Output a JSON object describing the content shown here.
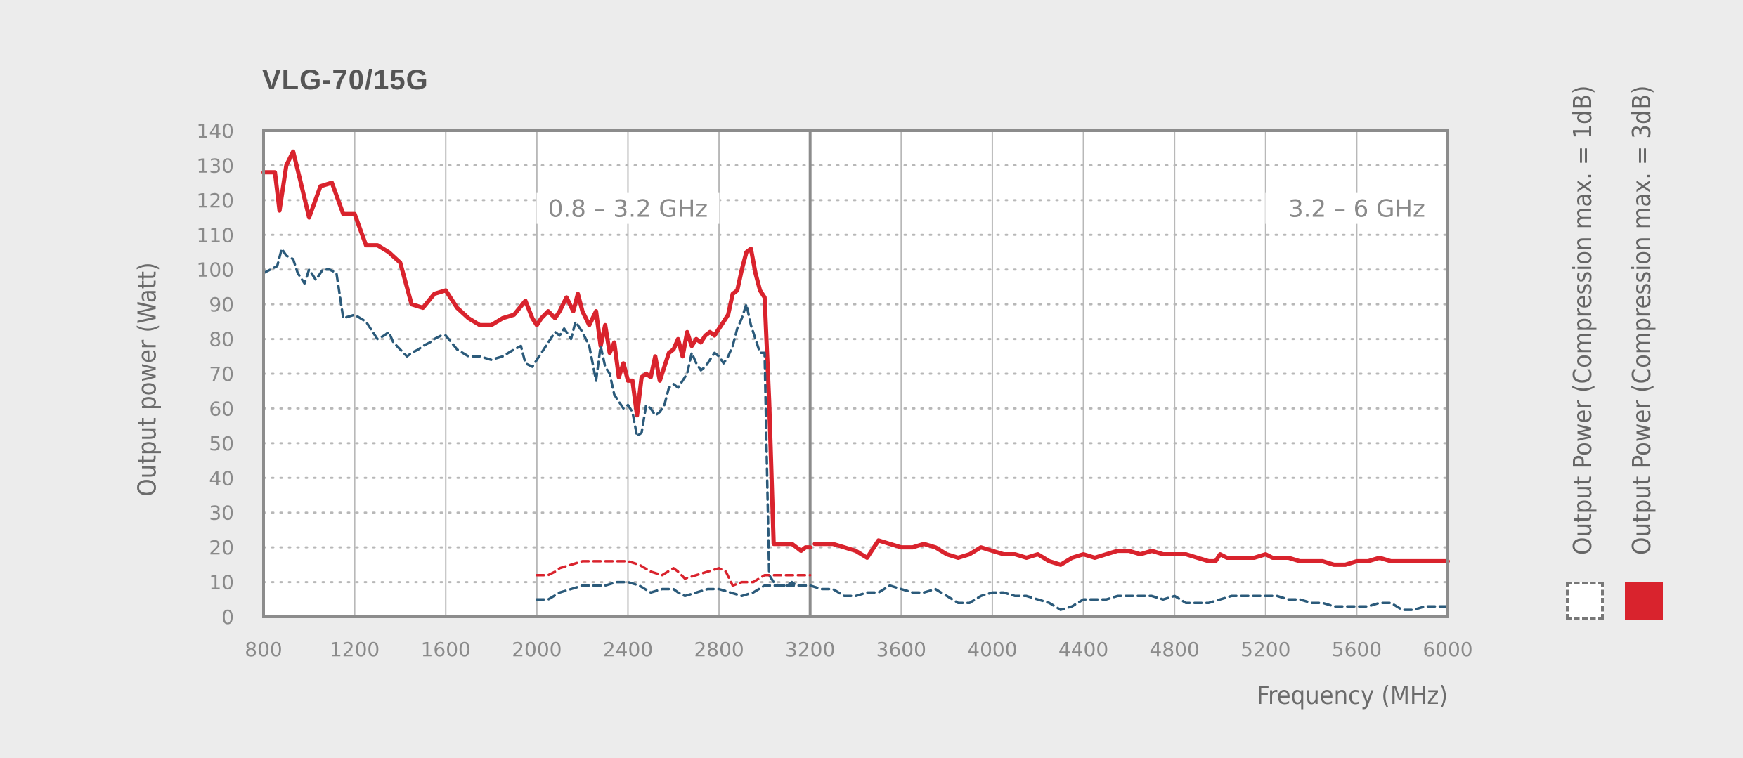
{
  "chart_data": {
    "type": "line",
    "title": "VLG-70/15G",
    "xlabel": "Frequency (MHz)",
    "ylabel": "Output power (Watt)",
    "xlim": [
      800,
      6000
    ],
    "ylim": [
      0,
      140
    ],
    "x_ticks": [
      "800",
      "1200",
      "1600",
      "2000",
      "2400",
      "2800",
      "3200",
      "3600",
      "4000",
      "4400",
      "4800",
      "5200",
      "5600",
      "6000"
    ],
    "y_ticks": [
      "0",
      "10",
      "20",
      "30",
      "40",
      "50",
      "60",
      "70",
      "80",
      "90",
      "100",
      "110",
      "120",
      "130",
      "140"
    ],
    "regions": [
      {
        "label": "0.8 – 3.2 GHz",
        "x": 2400
      },
      {
        "label": "3.2 – 6 GHz",
        "x": 5600
      }
    ],
    "grid": true,
    "legend": [
      {
        "label": "Output Power (Compression max. = 1dB)",
        "style": "dashed-box"
      },
      {
        "label": "Output Power (Compression max. = 3dB)",
        "style": "filled",
        "color": "#d9232d"
      }
    ],
    "colors": {
      "red": "#d9232d",
      "blue": "#2b5a7a",
      "grid": "#b8b8b8",
      "frame": "#8c8c8c",
      "tick_text": "#8a8a8a"
    },
    "series": [
      {
        "style": "solid",
        "color": "#d9232d",
        "x": [
          800,
          850,
          870,
          900,
          930,
          960,
          1000,
          1050,
          1100,
          1150,
          1200,
          1250,
          1300,
          1350,
          1400,
          1450,
          1500,
          1550,
          1600,
          1650,
          1700,
          1750,
          1800,
          1850,
          1900,
          1950,
          1980,
          2000,
          2020,
          2050,
          2080,
          2100,
          2130,
          2160,
          2180,
          2200,
          2230,
          2260,
          2280,
          2300,
          2320,
          2340,
          2360,
          2380,
          2400,
          2420,
          2440,
          2460,
          2480,
          2500,
          2520,
          2540,
          2560,
          2580,
          2600,
          2620,
          2640,
          2660,
          2680,
          2700,
          2720,
          2740,
          2760,
          2780,
          2800,
          2820,
          2840,
          2860,
          2880,
          2900,
          2920,
          2940,
          2960,
          2980,
          3000,
          3020,
          3040,
          3060,
          3080,
          3100,
          3120,
          3140,
          3160,
          3180,
          3200
        ],
        "y": [
          128,
          128,
          117,
          130,
          134,
          126,
          115,
          124,
          125,
          116,
          116,
          107,
          107,
          105,
          102,
          90,
          89,
          93,
          94,
          89,
          86,
          84,
          84,
          86,
          87,
          91,
          86,
          84,
          86,
          88,
          86,
          88,
          92,
          88,
          93,
          88,
          84,
          88,
          78,
          84,
          76,
          79,
          69,
          73,
          68,
          68,
          58,
          69,
          70,
          69,
          75,
          68,
          72,
          76,
          77,
          80,
          75,
          82,
          78,
          80,
          79,
          81,
          82,
          81,
          83,
          85,
          87,
          93,
          94,
          100,
          105,
          106,
          99,
          94,
          92,
          62,
          21,
          21,
          21,
          21,
          21,
          20,
          19,
          20,
          20
        ],
        "note": ""
      },
      {
        "style": "solid",
        "color": "#d9232d",
        "x": [
          3220,
          3300,
          3350,
          3400,
          3450,
          3470,
          3500,
          3550,
          3600,
          3650,
          3700,
          3750,
          3800,
          3850,
          3900,
          3950,
          4000,
          4050,
          4100,
          4150,
          4200,
          4250,
          4300,
          4350,
          4400,
          4450,
          4500,
          4550,
          4600,
          4650,
          4700,
          4750,
          4800,
          4850,
          4900,
          4950,
          4980,
          5000,
          5030,
          5060,
          5100,
          5150,
          5200,
          5230,
          5260,
          5300,
          5350,
          5400,
          5450,
          5500,
          5550,
          5600,
          5650,
          5700,
          5750,
          5780,
          5820,
          5900,
          6000
        ],
        "y": [
          21,
          21,
          20,
          19,
          17,
          19,
          22,
          21,
          20,
          20,
          21,
          20,
          18,
          17,
          18,
          20,
          19,
          18,
          18,
          17,
          18,
          16,
          15,
          17,
          18,
          17,
          18,
          19,
          19,
          18,
          19,
          18,
          18,
          18,
          17,
          16,
          16,
          18,
          17,
          17,
          17,
          17,
          18,
          17,
          17,
          17,
          16,
          16,
          16,
          15,
          15,
          16,
          16,
          17,
          16,
          16,
          16,
          16,
          16
        ],
        "note": ""
      },
      {
        "style": "dashed",
        "color": "#2b5a7a",
        "x": [
          800,
          830,
          860,
          880,
          900,
          930,
          950,
          980,
          1000,
          1030,
          1060,
          1090,
          1120,
          1150,
          1200,
          1250,
          1300,
          1330,
          1350,
          1370,
          1400,
          1430,
          1450,
          1480,
          1500,
          1530,
          1550,
          1580,
          1600,
          1650,
          1700,
          1750,
          1800,
          1850,
          1900,
          1930,
          1950,
          1980,
          2000,
          2030,
          2060,
          2080,
          2100,
          2120,
          2150,
          2170,
          2200,
          2230,
          2260,
          2280,
          2300,
          2320,
          2340,
          2360,
          2380,
          2400,
          2420,
          2440,
          2460,
          2480,
          2500,
          2520,
          2540,
          2560,
          2580,
          2600,
          2620,
          2640,
          2660,
          2680,
          2700,
          2720,
          2740,
          2760,
          2780,
          2800,
          2820,
          2840,
          2860,
          2880,
          2900,
          2920,
          2940,
          2960,
          2980,
          3000,
          3020,
          3040,
          3060,
          3080,
          3100,
          3120,
          3140,
          3160,
          3180,
          3200
        ],
        "y": [
          99,
          100,
          101,
          106,
          104,
          103,
          99,
          96,
          100,
          97,
          100,
          100,
          99,
          86,
          87,
          85,
          80,
          81,
          82,
          79,
          77,
          75,
          76,
          77,
          78,
          79,
          80,
          81,
          81,
          77,
          75,
          75,
          74,
          75,
          77,
          78,
          73,
          72,
          74,
          77,
          80,
          82,
          81,
          83,
          80,
          85,
          82,
          78,
          68,
          78,
          72,
          70,
          64,
          62,
          60,
          61,
          59,
          52,
          53,
          61,
          60,
          58,
          59,
          61,
          66,
          67,
          66,
          68,
          70,
          76,
          73,
          71,
          72,
          74,
          76,
          75,
          73,
          75,
          78,
          83,
          86,
          90,
          84,
          80,
          76,
          76,
          12,
          10,
          9,
          9,
          9,
          10,
          9,
          9,
          9,
          9
        ],
        "note": ""
      },
      {
        "style": "dashed",
        "color": "#2b5a7a",
        "x": [
          2000,
          2050,
          2100,
          2150,
          2200,
          2250,
          2300,
          2350,
          2400,
          2450,
          2500,
          2550,
          2600,
          2620,
          2650,
          2700,
          2750,
          2800,
          2850,
          2900,
          2950,
          3000,
          3050,
          3100,
          3150,
          3200,
          3250,
          3300,
          3350,
          3400,
          3450,
          3500,
          3550,
          3600,
          3650,
          3700,
          3750,
          3800,
          3850,
          3900,
          3950,
          4000,
          4050,
          4100,
          4150,
          4200,
          4250,
          4300,
          4350,
          4400,
          4450,
          4500,
          4550,
          4600,
          4650,
          4700,
          4750,
          4800,
          4850,
          4900,
          4950,
          5000,
          5050,
          5100,
          5150,
          5200,
          5250,
          5300,
          5350,
          5400,
          5450,
          5500,
          5550,
          5600,
          5650,
          5700,
          5750,
          5800,
          5850,
          5900,
          5950,
          6000
        ],
        "y": [
          5,
          5,
          7,
          8,
          9,
          9,
          9,
          10,
          10,
          9,
          7,
          8,
          8,
          7,
          6,
          7,
          8,
          8,
          7,
          6,
          7,
          9,
          9,
          9,
          9,
          9,
          8,
          8,
          6,
          6,
          7,
          7,
          9,
          8,
          7,
          7,
          8,
          6,
          4,
          4,
          6,
          7,
          7,
          6,
          6,
          5,
          4,
          2,
          3,
          5,
          5,
          5,
          6,
          6,
          6,
          6,
          5,
          6,
          4,
          4,
          4,
          5,
          6,
          6,
          6,
          6,
          6,
          5,
          5,
          4,
          4,
          3,
          3,
          3,
          3,
          4,
          4,
          2,
          2,
          3,
          3,
          3
        ],
        "note": ""
      },
      {
        "style": "dashed",
        "color": "#d9232d",
        "x": [
          2000,
          2050,
          2080,
          2100,
          2150,
          2200,
          2250,
          2300,
          2350,
          2400,
          2450,
          2500,
          2550,
          2600,
          2620,
          2650,
          2700,
          2750,
          2800,
          2830,
          2860,
          2900,
          2950,
          3000,
          3050,
          3100,
          3150,
          3200
        ],
        "y": [
          12,
          12,
          13,
          14,
          15,
          16,
          16,
          16,
          16,
          16,
          15,
          13,
          12,
          14,
          13,
          11,
          12,
          13,
          14,
          13,
          9,
          10,
          10,
          12,
          12,
          12,
          12,
          12
        ],
        "note": ""
      }
    ]
  }
}
